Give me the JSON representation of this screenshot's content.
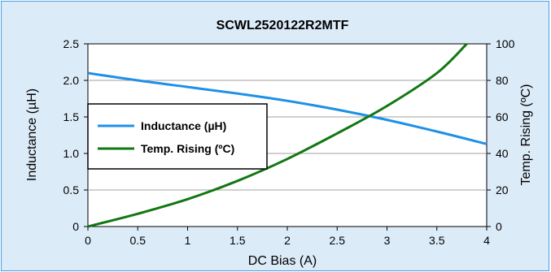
{
  "chart_data": {
    "type": "line",
    "title": "SCWL2520122R2MTF",
    "xlabel": "DC Bias (A)",
    "ylabel_left": "Inductance (µH)",
    "ylabel_right": "Temp. Rising (ºC)",
    "xlim": [
      0,
      4
    ],
    "ylim_left": [
      0,
      2.5
    ],
    "ylim_right": [
      0,
      100
    ],
    "x_ticks": [
      "0",
      "0.5",
      "1",
      "1.5",
      "2",
      "2.5",
      "3",
      "3.5",
      "4"
    ],
    "y_left_ticks": [
      "0",
      "0.5",
      "1.0",
      "1.5",
      "2.0",
      "2.5"
    ],
    "y_right_ticks": [
      "0",
      "20",
      "40",
      "60",
      "80",
      "100"
    ],
    "grid": "horizontal",
    "legend_position": "center-left",
    "series": [
      {
        "name": "Inductance (µH)",
        "axis": "left",
        "color": "#1e90e6",
        "x": [
          0,
          0.5,
          1,
          1.5,
          2,
          2.5,
          3,
          3.5,
          4
        ],
        "y": [
          2.1,
          2.0,
          1.91,
          1.82,
          1.72,
          1.6,
          1.46,
          1.3,
          1.13
        ]
      },
      {
        "name": "Temp. Rising (ºC)",
        "axis": "right",
        "color": "#117711",
        "x": [
          0,
          0.5,
          1,
          1.5,
          2,
          2.5,
          3,
          3.5,
          3.8
        ],
        "y": [
          0,
          7,
          15,
          25,
          37,
          51,
          66,
          84,
          100
        ]
      }
    ]
  }
}
